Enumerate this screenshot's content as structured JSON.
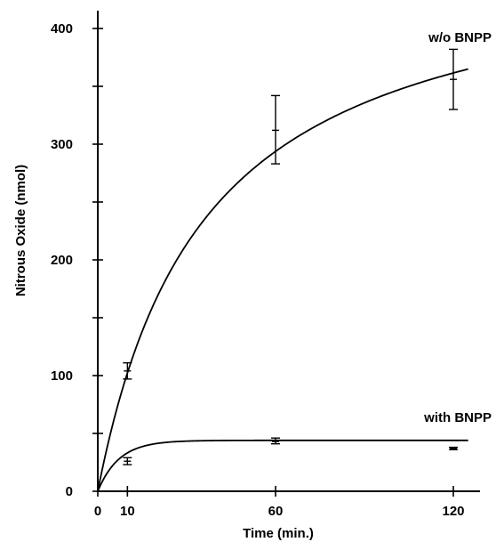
{
  "chart_data": {
    "type": "line",
    "title": "",
    "xlabel": "Time (min.)",
    "ylabel": "Nitrous Oxide (nmol)",
    "xlim": [
      0,
      125
    ],
    "ylim": [
      0,
      420
    ],
    "x_ticks": [
      0,
      10,
      60,
      120
    ],
    "y_ticks": [
      0,
      100,
      200,
      300,
      400
    ],
    "y_minor_ticks": [
      50,
      150,
      250,
      350
    ],
    "grid": false,
    "series": [
      {
        "name": "w/o BNPP",
        "points": [
          {
            "x": 10,
            "y": 104,
            "err_low": 97,
            "err_high": 111
          },
          {
            "x": 60,
            "y": 312,
            "err_low": 283,
            "err_high": 342
          },
          {
            "x": 120,
            "y": 356,
            "err_low": 330,
            "err_high": 382
          }
        ],
        "fit": {
          "form": "hyperbolic",
          "ymax": 470,
          "k": 36
        }
      },
      {
        "name": "with BNPP",
        "points": [
          {
            "x": 10,
            "y": 26,
            "err_low": 23,
            "err_high": 29
          },
          {
            "x": 60,
            "y": 43,
            "err_low": 41,
            "err_high": 46
          },
          {
            "x": 120,
            "y": 37,
            "err_low": 36,
            "err_high": 38
          }
        ],
        "fit": {
          "form": "exponential",
          "ymax": 44,
          "k": 0.14
        }
      }
    ]
  }
}
